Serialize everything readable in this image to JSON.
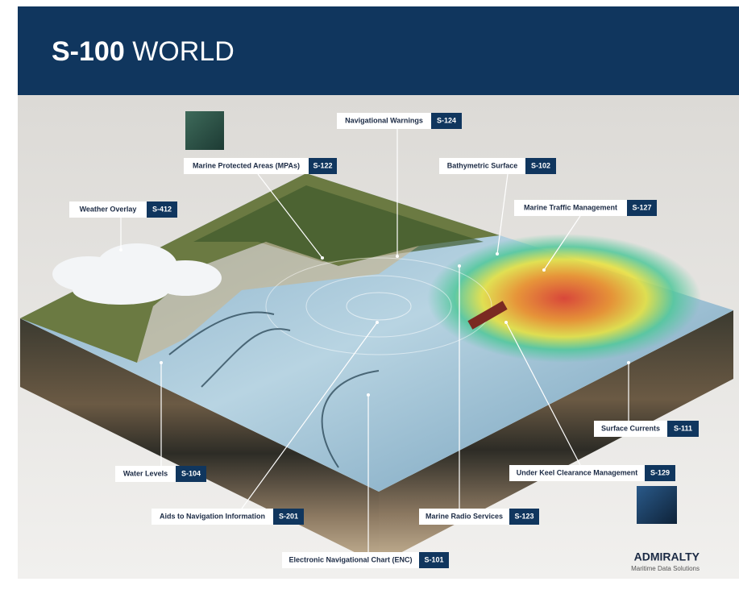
{
  "header": {
    "code": "S-100",
    "title": "WORLD"
  },
  "labels": [
    {
      "name": "Navigational Warnings",
      "code": "S-124"
    },
    {
      "name": "Marine Protected Areas (MPAs)",
      "code": "S-122"
    },
    {
      "name": "Bathymetric Surface",
      "code": "S-102"
    },
    {
      "name": "Weather Overlay",
      "code": "S-412"
    },
    {
      "name": "Marine Traffic Management",
      "code": "S-127"
    },
    {
      "name": "Surface Currents",
      "code": "S-111"
    },
    {
      "name": "Water Levels",
      "code": "S-104"
    },
    {
      "name": "Under Keel Clearance Management",
      "code": "S-129"
    },
    {
      "name": "Aids to Navigation Information",
      "code": "S-201"
    },
    {
      "name": "Marine Radio Services",
      "code": "S-123"
    },
    {
      "name": "Electronic Navigational Chart (ENC)",
      "code": "S-101"
    }
  ],
  "footer": {
    "brand": "ADMIRALTY",
    "tagline": "Maritime Data Solutions"
  }
}
